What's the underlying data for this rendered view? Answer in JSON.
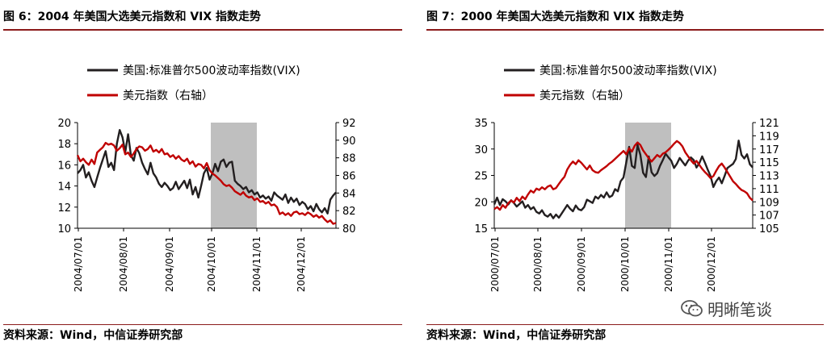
{
  "watermark": "明晰笔谈",
  "panels": [
    {
      "figure_title": "图 6：2004 年美国大选美元指数和 VIX 指数走势",
      "source": "资料来源：Wind，中信证券研究部",
      "chart_data": {
        "type": "line",
        "legend": [
          "美国:标准普尔500波动率指数(VIX)",
          "美元指数（右轴）"
        ],
        "left_axis": {
          "range": [
            10,
            20
          ],
          "ticks": [
            "20",
            "18",
            "16",
            "14",
            "12",
            "10"
          ]
        },
        "right_axis": {
          "range": [
            80,
            92
          ],
          "ticks": [
            "92",
            "90",
            "88",
            "86",
            "84",
            "82",
            "80"
          ]
        },
        "x_ticks": [
          "2004/07/01",
          "2004/08/01",
          "2004/09/01",
          "2004/10/01",
          "2004/11/01",
          "2004/12/01"
        ],
        "shaded_region": [
          "2004/10/01",
          "2004/11/01"
        ],
        "series": [
          {
            "name": "美国:标准普尔500波动率指数(VIX)",
            "axis": "left",
            "color": "#231f20",
            "x": [
              0,
              2,
              4,
              6,
              8,
              10,
              12,
              14,
              16,
              18,
              20,
              22,
              24,
              26,
              28,
              30,
              32,
              34,
              36,
              38,
              40,
              42,
              44,
              46,
              48,
              50,
              52,
              54,
              56,
              58,
              60,
              62,
              64,
              66,
              68,
              70,
              72,
              74,
              76,
              78,
              80,
              82,
              84,
              86,
              88,
              90,
              92,
              94,
              96,
              98,
              100,
              102,
              104,
              106,
              108,
              110,
              112,
              114,
              116,
              118,
              120,
              122,
              124,
              126,
              128,
              130,
              132,
              134,
              136,
              138,
              140,
              142,
              144,
              146,
              148,
              150,
              152,
              154,
              156,
              158,
              160,
              162,
              164,
              166,
              168,
              170,
              172,
              174,
              176,
              178,
              180,
              182,
              184
            ],
            "y": [
              15.2,
              15.5,
              16.0,
              14.8,
              15.3,
              14.5,
              13.9,
              14.8,
              15.7,
              16.5,
              17.3,
              15.8,
              16.2,
              15.5,
              18.0,
              19.3,
              18.6,
              17.2,
              18.9,
              16.9,
              16.4,
              17.6,
              17.1,
              16.2,
              15.6,
              15.1,
              16.2,
              15.2,
              14.8,
              14.2,
              13.9,
              14.3,
              14.0,
              13.6,
              13.8,
              14.4,
              13.7,
              14.1,
              14.5,
              13.8,
              14.6,
              13.2,
              13.9,
              12.9,
              14.0,
              15.2,
              15.7,
              14.6,
              15.2,
              16.1,
              15.4,
              16.3,
              16.5,
              15.8,
              16.2,
              16.3,
              14.5,
              14.2,
              14.0,
              13.7,
              13.9,
              13.4,
              13.6,
              13.2,
              13.4,
              12.9,
              13.1,
              12.8,
              13.0,
              12.6,
              13.4,
              13.1,
              12.9,
              12.7,
              13.2,
              12.4,
              12.9,
              12.5,
              12.8,
              12.2,
              12.5,
              12.3,
              11.8,
              12.1,
              11.6,
              12.3,
              11.8,
              11.5,
              11.9,
              11.4,
              12.7,
              13.1,
              13.4
            ]
          },
          {
            "name": "美元指数（右轴）",
            "axis": "right",
            "color": "#c00000",
            "x": [
              0,
              2,
              4,
              6,
              8,
              10,
              12,
              14,
              16,
              18,
              20,
              22,
              24,
              26,
              28,
              30,
              32,
              34,
              36,
              38,
              40,
              42,
              44,
              46,
              48,
              50,
              52,
              54,
              56,
              58,
              60,
              62,
              64,
              66,
              68,
              70,
              72,
              74,
              76,
              78,
              80,
              82,
              84,
              86,
              88,
              90,
              92,
              94,
              96,
              98,
              100,
              102,
              104,
              106,
              108,
              110,
              112,
              114,
              116,
              118,
              120,
              122,
              124,
              126,
              128,
              130,
              132,
              134,
              136,
              138,
              140,
              142,
              144,
              146,
              148,
              150,
              152,
              154,
              156,
              158,
              160,
              162,
              164,
              166,
              168,
              170,
              172,
              174,
              176,
              178,
              180,
              182,
              184
            ],
            "y": [
              88.3,
              87.6,
              87.9,
              87.5,
              87.2,
              87.8,
              87.3,
              88.6,
              88.9,
              89.2,
              89.7,
              89.5,
              89.6,
              89.4,
              88.8,
              89.1,
              89.5,
              88.4,
              88.6,
              88.1,
              88.5,
              89.0,
              89.3,
              89.2,
              88.8,
              89.0,
              89.4,
              88.7,
              88.9,
              88.6,
              89.0,
              88.4,
              88.5,
              88.1,
              88.3,
              87.9,
              88.2,
              87.8,
              87.6,
              87.9,
              87.3,
              87.6,
              87.0,
              87.3,
              87.2,
              86.8,
              87.4,
              86.6,
              86.2,
              86.0,
              85.7,
              85.4,
              85.0,
              84.8,
              84.9,
              84.6,
              84.2,
              84.0,
              83.8,
              84.1,
              83.7,
              83.5,
              83.6,
              83.2,
              83.4,
              83.0,
              83.1,
              82.8,
              83.0,
              82.6,
              82.7,
              82.4,
              81.6,
              81.8,
              81.5,
              81.7,
              81.4,
              81.8,
              81.9,
              81.6,
              81.7,
              81.5,
              81.8,
              81.6,
              81.3,
              81.5,
              81.2,
              81.4,
              81.0,
              80.7,
              80.9,
              80.5,
              80.6
            ]
          }
        ]
      }
    },
    {
      "figure_title": "图 7：2000 年美国大选美元指数和 VIX 指数走势",
      "source": "资料来源：Wind，中信证券研究部",
      "chart_data": {
        "type": "line",
        "legend": [
          "美国:标准普尔500波动率指数(VIX)",
          "美元指数（右轴）"
        ],
        "left_axis": {
          "range": [
            15,
            35
          ],
          "ticks": [
            "35",
            "30",
            "25",
            "20",
            "15"
          ]
        },
        "right_axis": {
          "range": [
            105,
            121
          ],
          "ticks": [
            "121",
            "119",
            "117",
            "115",
            "113",
            "111",
            "109",
            "107",
            "105"
          ]
        },
        "x_ticks": [
          "2000/07/01",
          "2000/08/01",
          "2000/09/01",
          "2000/10/01",
          "2000/11/01",
          "2000/12/01"
        ],
        "shaded_region": [
          "2000/10/01",
          "2000/11/08"
        ],
        "series": [
          {
            "name": "美国:标准普尔500波动率指数(VIX)",
            "axis": "left",
            "color": "#231f20",
            "x": [
              0,
              2,
              4,
              6,
              8,
              10,
              12,
              14,
              16,
              18,
              20,
              22,
              24,
              26,
              28,
              30,
              32,
              34,
              36,
              38,
              40,
              42,
              44,
              46,
              48,
              50,
              52,
              54,
              56,
              58,
              60,
              62,
              64,
              66,
              68,
              70,
              72,
              74,
              76,
              78,
              80,
              82,
              84,
              86,
              88,
              90,
              92,
              94,
              96,
              98,
              100,
              102,
              104,
              106,
              108,
              110,
              112,
              114,
              116,
              118,
              120,
              122,
              124,
              126,
              128,
              130,
              132,
              134,
              136,
              138,
              140,
              142,
              144,
              146,
              148,
              150,
              152,
              154,
              156,
              158,
              160,
              162,
              164,
              166,
              168,
              170,
              172,
              174,
              176,
              178,
              180,
              182,
              184
            ],
            "y": [
              19.5,
              20.8,
              19.4,
              20.5,
              20.1,
              19.5,
              20.3,
              19.8,
              19.1,
              19.6,
              20.1,
              18.9,
              19.4,
              18.6,
              19.0,
              18.1,
              17.8,
              18.4,
              17.5,
              17.2,
              17.7,
              16.9,
              17.6,
              17.0,
              17.8,
              18.6,
              19.4,
              18.7,
              18.2,
              19.3,
              18.6,
              18.4,
              19.0,
              20.4,
              20.1,
              19.8,
              21.0,
              20.6,
              21.3,
              20.8,
              21.8,
              20.9,
              21.2,
              22.4,
              22.0,
              23.9,
              24.6,
              27.5,
              30.4,
              26.8,
              26.4,
              30.8,
              28.9,
              25.5,
              24.7,
              28.6,
              25.6,
              24.9,
              25.4,
              26.8,
              27.9,
              29.1,
              28.4,
              27.8,
              26.4,
              27.2,
              28.3,
              27.6,
              26.9,
              27.8,
              28.4,
              27.9,
              26.5,
              27.3,
              28.6,
              27.4,
              26.1,
              24.9,
              22.8,
              23.9,
              24.6,
              23.5,
              24.9,
              26.4,
              26.8,
              27.2,
              28.1,
              31.6,
              28.9,
              28.2,
              29.0,
              27.1,
              26.5
            ]
          },
          {
            "name": "美元指数（右轴）",
            "axis": "right",
            "color": "#c00000",
            "x": [
              0,
              2,
              4,
              6,
              8,
              10,
              12,
              14,
              16,
              18,
              20,
              22,
              24,
              26,
              28,
              30,
              32,
              34,
              36,
              38,
              40,
              42,
              44,
              46,
              48,
              50,
              52,
              54,
              56,
              58,
              60,
              62,
              64,
              66,
              68,
              70,
              72,
              74,
              76,
              78,
              80,
              82,
              84,
              86,
              88,
              90,
              92,
              94,
              96,
              98,
              100,
              102,
              104,
              106,
              108,
              110,
              112,
              114,
              116,
              118,
              120,
              122,
              124,
              126,
              128,
              130,
              132,
              134,
              136,
              138,
              140,
              142,
              144,
              146,
              148,
              150,
              152,
              154,
              156,
              158,
              160,
              162,
              164,
              166,
              168,
              170,
              172,
              174,
              176,
              178,
              180,
              182,
              184
            ],
            "y": [
              107.9,
              108.2,
              107.8,
              108.5,
              108.1,
              108.8,
              109.2,
              108.9,
              109.6,
              109.1,
              109.8,
              109.4,
              110.1,
              110.7,
              110.4,
              111.0,
              110.8,
              111.2,
              110.9,
              111.3,
              111.5,
              110.9,
              111.1,
              111.7,
              112.3,
              112.8,
              113.9,
              114.6,
              115.1,
              114.7,
              115.3,
              114.9,
              114.4,
              113.9,
              114.5,
              113.8,
              113.5,
              113.4,
              113.8,
              114.1,
              114.4,
              114.8,
              115.1,
              115.5,
              115.9,
              116.3,
              116.7,
              116.2,
              117.1,
              116.6,
              117.5,
              118.0,
              117.6,
              116.8,
              116.2,
              115.6,
              115.1,
              115.6,
              116.1,
              115.8,
              116.3,
              116.5,
              116.9,
              117.3,
              117.8,
              118.2,
              117.9,
              117.4,
              116.5,
              115.9,
              115.3,
              114.8,
              115.2,
              114.6,
              114.0,
              113.5,
              113.1,
              112.6,
              112.9,
              113.7,
              114.4,
              114.8,
              114.2,
              113.5,
              112.8,
              112.1,
              111.7,
              111.2,
              110.8,
              110.6,
              110.3,
              109.6,
              109.2
            ]
          }
        ]
      }
    }
  ]
}
